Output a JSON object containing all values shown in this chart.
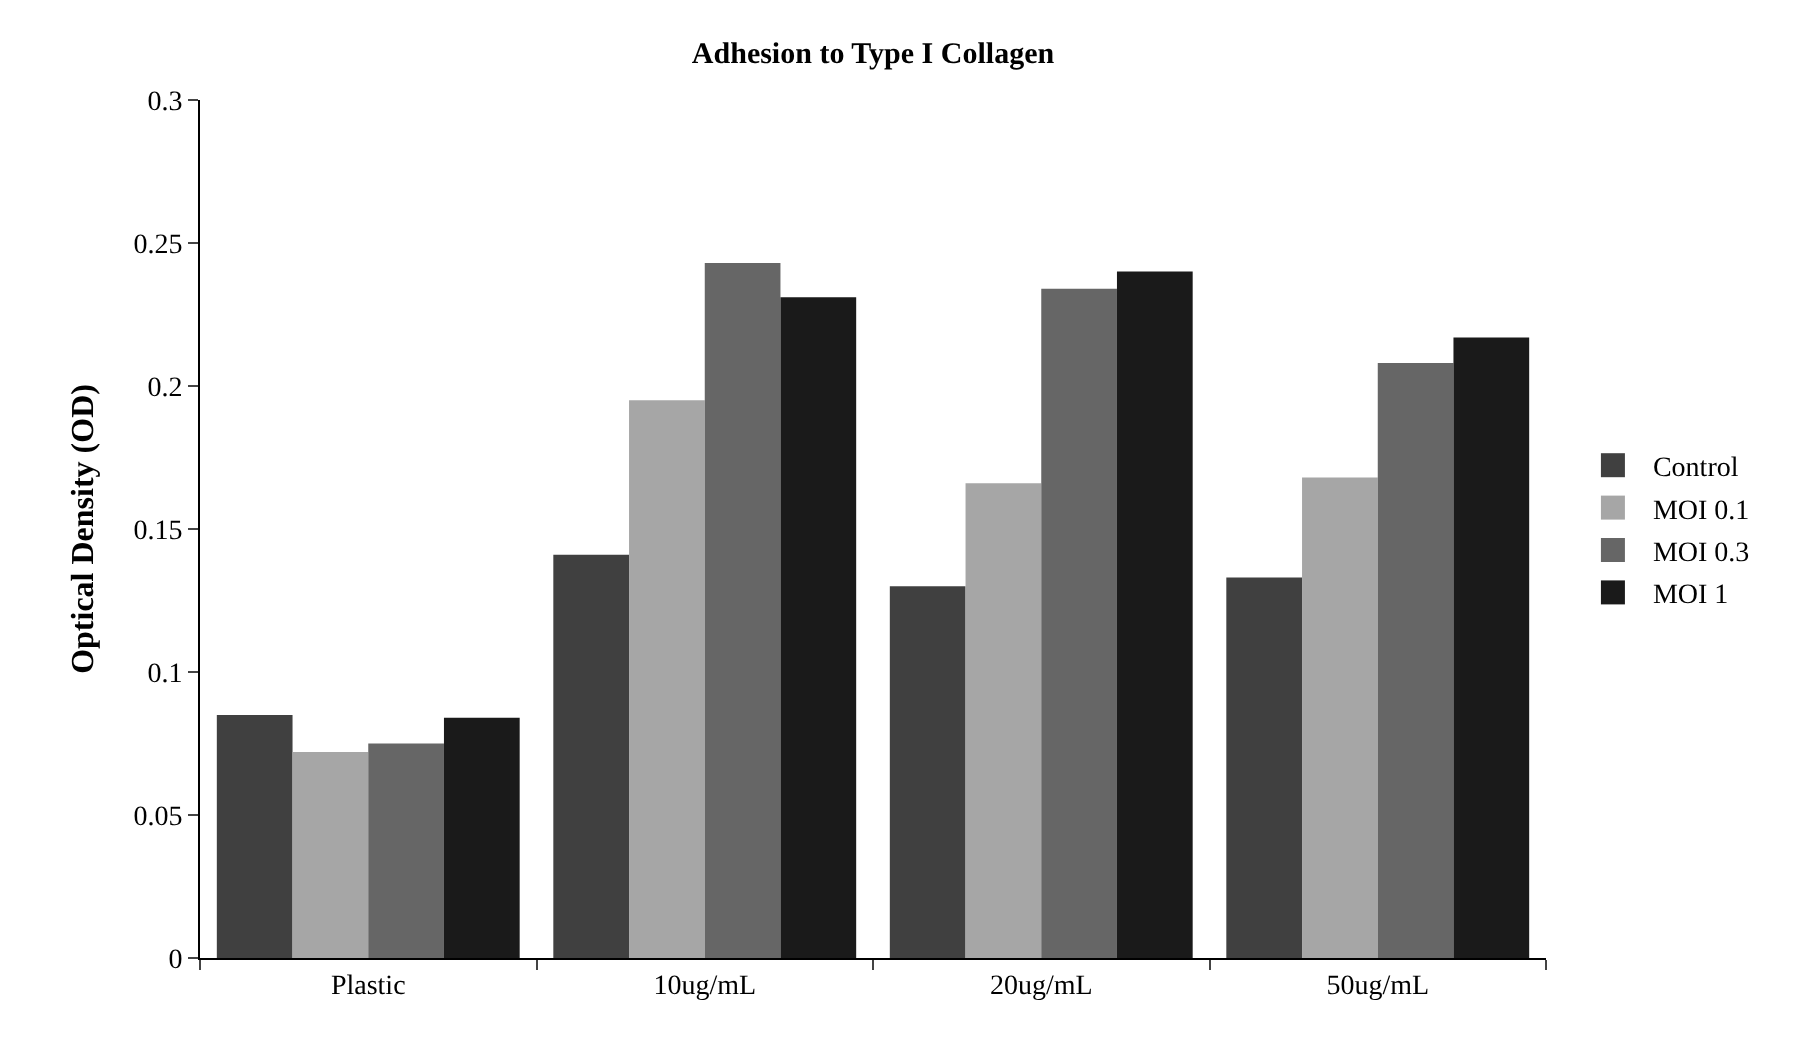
{
  "chart_data": {
    "type": "bar",
    "title": "Adhesion to Type I Collagen",
    "ylabel": "Optical Density (OD)",
    "categories": [
      "Plastic",
      "10ug/mL",
      "20ug/mL",
      "50ug/mL"
    ],
    "series": [
      {
        "name": "Control",
        "color": "#404040",
        "values": [
          0.085,
          0.141,
          0.13,
          0.133
        ]
      },
      {
        "name": "MOI 0.1",
        "color": "#a6a6a6",
        "values": [
          0.072,
          0.195,
          0.166,
          0.168
        ]
      },
      {
        "name": "MOI 0.3",
        "color": "#666666",
        "values": [
          0.075,
          0.243,
          0.234,
          0.208
        ]
      },
      {
        "name": "MOI 1",
        "color": "#1a1a1a",
        "values": [
          0.084,
          0.231,
          0.24,
          0.217
        ]
      }
    ],
    "ylim": [
      0,
      0.3
    ],
    "yticks": [
      0,
      0.05,
      0.1,
      0.15,
      0.2,
      0.25,
      0.3
    ],
    "legend": "right"
  }
}
